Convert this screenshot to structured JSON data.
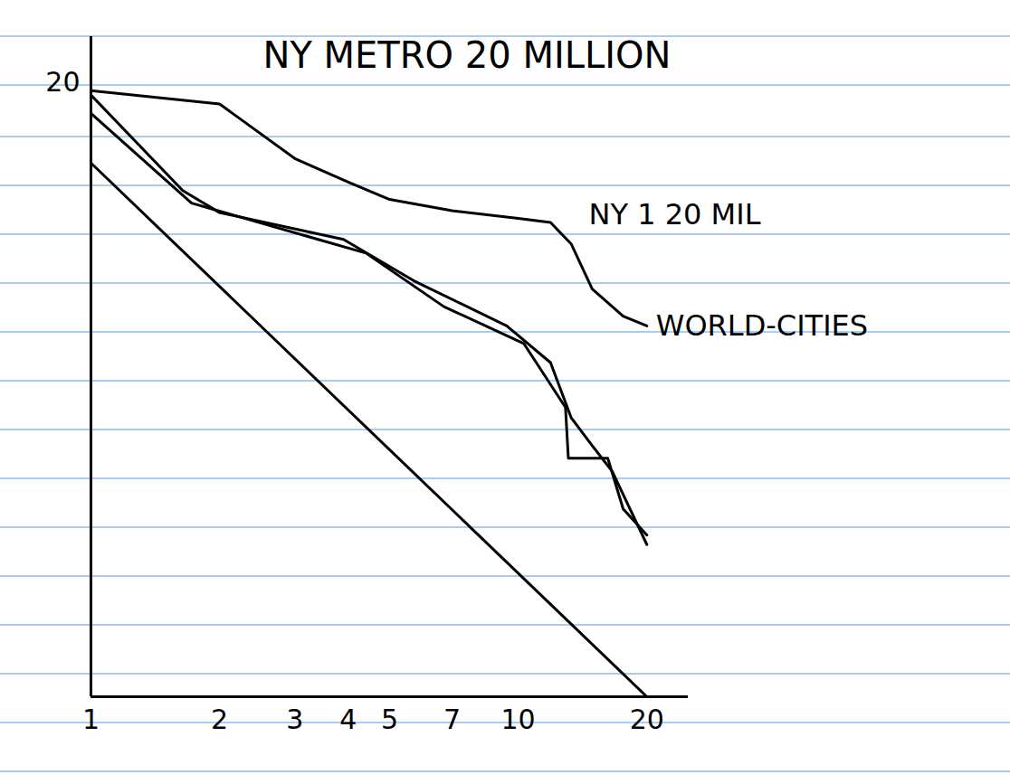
{
  "chart_data": {
    "type": "line",
    "log": true,
    "xlim": [
      1,
      25
    ],
    "ylim": [
      1,
      25
    ],
    "xticks": [
      1,
      2,
      3,
      4,
      5,
      7,
      10,
      20
    ],
    "yticks": [
      20
    ],
    "annotations": [
      "NY METRO 20 MILLION",
      "NY 1 20 MIL"
    ],
    "series": [
      {
        "name": "WORLD-CITIES",
        "color": "#000000",
        "x": [
          1,
          2,
          3,
          4,
          5,
          7,
          10,
          11.9,
          13.3,
          14.9,
          17.6,
          20
        ],
        "values": [
          19.2,
          18.0,
          13.8,
          12.3,
          11.3,
          10.7,
          10.3,
          10.1,
          9.1,
          7.3,
          6.4,
          6.1
        ]
      },
      {
        "color": "#000000",
        "x": [
          1,
          1.64,
          2,
          3.9,
          5.7,
          9.4,
          11.9,
          13.3,
          14.9,
          16.6,
          20
        ],
        "values": [
          18.8,
          11.8,
          10.6,
          9.3,
          7.6,
          6.1,
          5.1,
          3.9,
          3.4,
          3.0,
          2.1
        ]
      },
      {
        "color": "#000000",
        "x": [
          1,
          1.72,
          3.4,
          4.4,
          6.7,
          10.3,
          12.9,
          13.1,
          16.2,
          17.6,
          20
        ],
        "values": [
          17.2,
          11.1,
          9.3,
          8.7,
          6.7,
          5.6,
          4.1,
          3.2,
          3.2,
          2.5,
          2.2
        ]
      },
      {
        "color": "#000000",
        "x": [
          1,
          20
        ],
        "values": [
          13.5,
          1
        ]
      }
    ]
  }
}
